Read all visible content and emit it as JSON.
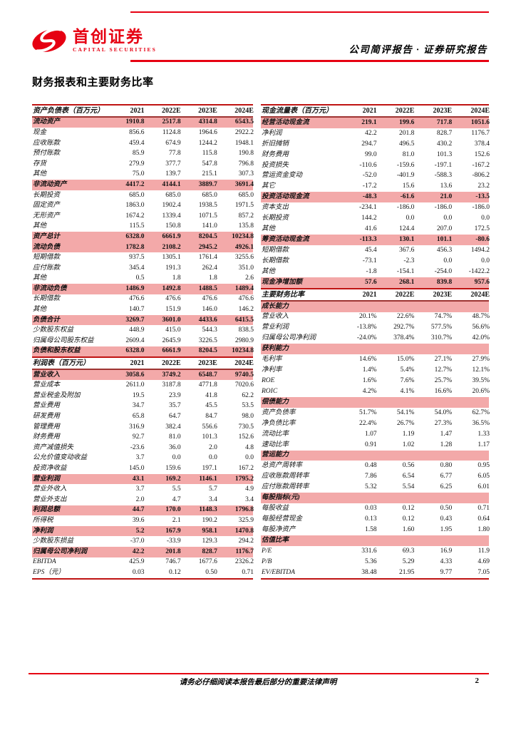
{
  "brand": {
    "name_cn": "首创证券",
    "name_en": "CAPITAL SECURITIES",
    "logo_icon": "red-swoosh-s-icon"
  },
  "header": {
    "title": "公司简评报告 · 证券研究报告"
  },
  "section_title": "财务报表和主要财务比率",
  "footer": {
    "disclaimer": "请务必仔细阅读本报告最后部分的重要法律声明",
    "page_number": "2"
  },
  "colors": {
    "accent_red": "#e60012",
    "table_rule_red": "#bf1312",
    "row_highlight_pink": "#f3a9a9"
  },
  "columns": [
    {
      "tables": [
        {
          "title": "资产负债表（百万元）",
          "years": [
            "2021",
            "2022E",
            "2023E",
            "2024E"
          ],
          "rows": [
            {
              "label": "流动资产",
              "values": [
                "1910.8",
                "2517.8",
                "4314.8",
                "6543.5"
              ],
              "hl": true
            },
            {
              "label": "现金",
              "values": [
                "856.6",
                "1124.8",
                "1964.6",
                "2922.2"
              ]
            },
            {
              "label": "应收账款",
              "values": [
                "459.4",
                "674.9",
                "1244.2",
                "1948.1"
              ]
            },
            {
              "label": "预付账款",
              "values": [
                "85.9",
                "77.8",
                "115.8",
                "190.8"
              ]
            },
            {
              "label": "存货",
              "values": [
                "279.9",
                "377.7",
                "547.8",
                "796.8"
              ]
            },
            {
              "label": "其他",
              "values": [
                "75.0",
                "139.7",
                "215.1",
                "307.3"
              ]
            },
            {
              "label": "非流动资产",
              "values": [
                "4417.2",
                "4144.1",
                "3889.7",
                "3691.4"
              ],
              "hl": true
            },
            {
              "label": "长期投资",
              "values": [
                "685.0",
                "685.0",
                "685.0",
                "685.0"
              ]
            },
            {
              "label": "固定资产",
              "values": [
                "1863.0",
                "1902.4",
                "1938.5",
                "1971.5"
              ]
            },
            {
              "label": "无形资产",
              "values": [
                "1674.2",
                "1339.4",
                "1071.5",
                "857.2"
              ]
            },
            {
              "label": "其他",
              "values": [
                "115.5",
                "150.8",
                "141.0",
                "135.8"
              ]
            },
            {
              "label": "资产总计",
              "values": [
                "6328.0",
                "6661.9",
                "8204.5",
                "10234.8"
              ],
              "hl": true
            },
            {
              "label": "流动负债",
              "values": [
                "1782.8",
                "2108.2",
                "2945.2",
                "4926.1"
              ],
              "hl": true
            },
            {
              "label": "短期借款",
              "values": [
                "937.5",
                "1305.1",
                "1761.4",
                "3255.6"
              ]
            },
            {
              "label": "应付账款",
              "values": [
                "345.4",
                "191.3",
                "262.4",
                "351.0"
              ]
            },
            {
              "label": "其他",
              "values": [
                "0.5",
                "1.8",
                "1.8",
                "2.6"
              ]
            },
            {
              "label": "非流动负债",
              "values": [
                "1486.9",
                "1492.8",
                "1488.5",
                "1489.4"
              ],
              "hl": true
            },
            {
              "label": "长期借款",
              "values": [
                "476.6",
                "476.6",
                "476.6",
                "476.6"
              ]
            },
            {
              "label": "其他",
              "values": [
                "140.7",
                "151.9",
                "146.0",
                "146.2"
              ]
            },
            {
              "label": "负债合计",
              "values": [
                "3269.7",
                "3601.0",
                "4433.6",
                "6415.5"
              ],
              "hl": true
            },
            {
              "label": "少数股东权益",
              "values": [
                "448.9",
                "415.0",
                "544.3",
                "838.5"
              ]
            },
            {
              "label": "归属母公司股东权益",
              "values": [
                "2609.4",
                "2645.9",
                "3226.5",
                "2980.9"
              ]
            },
            {
              "label": "负债和股东权益",
              "values": [
                "6328.0",
                "6661.9",
                "8204.5",
                "10234.8"
              ],
              "hl": true
            }
          ]
        },
        {
          "title": "利润表（百万元）",
          "years": [
            "2021",
            "2022E",
            "2023E",
            "2024E"
          ],
          "rows": [
            {
              "label": "营业收入",
              "values": [
                "3058.6",
                "3749.2",
                "6548.7",
                "9740.5"
              ],
              "hl": true
            },
            {
              "label": "营业成本",
              "values": [
                "2611.0",
                "3187.8",
                "4771.8",
                "7020.6"
              ]
            },
            {
              "label": "营业税金及附加",
              "values": [
                "19.5",
                "23.9",
                "41.8",
                "62.2"
              ]
            },
            {
              "label": "营业费用",
              "values": [
                "34.7",
                "35.7",
                "45.5",
                "53.5"
              ]
            },
            {
              "label": "研发费用",
              "values": [
                "65.8",
                "64.7",
                "84.7",
                "98.0"
              ]
            },
            {
              "label": "管理费用",
              "values": [
                "316.9",
                "382.4",
                "556.6",
                "730.5"
              ]
            },
            {
              "label": "财务费用",
              "values": [
                "92.7",
                "81.0",
                "101.3",
                "152.6"
              ]
            },
            {
              "label": "资产减值损失",
              "values": [
                "-23.6",
                "36.0",
                "2.0",
                "4.8"
              ]
            },
            {
              "label": "公允价值变动收益",
              "values": [
                "3.7",
                "0.0",
                "0.0",
                "0.0"
              ]
            },
            {
              "label": "投资净收益",
              "values": [
                "145.0",
                "159.6",
                "197.1",
                "167.2"
              ]
            },
            {
              "label": "营业利润",
              "values": [
                "43.1",
                "169.2",
                "1146.1",
                "1795.2"
              ],
              "hl": true
            },
            {
              "label": "营业外收入",
              "values": [
                "3.7",
                "5.5",
                "5.7",
                "4.9"
              ]
            },
            {
              "label": "营业外支出",
              "values": [
                "2.0",
                "4.7",
                "3.4",
                "3.4"
              ]
            },
            {
              "label": "利润总额",
              "values": [
                "44.7",
                "170.0",
                "1148.3",
                "1796.8"
              ],
              "hl": true
            },
            {
              "label": "所得税",
              "values": [
                "39.6",
                "2.1",
                "190.2",
                "325.9"
              ]
            },
            {
              "label": "净利润",
              "values": [
                "5.2",
                "167.9",
                "958.1",
                "1470.8"
              ],
              "hl": true
            },
            {
              "label": "少数股东损益",
              "values": [
                "-37.0",
                "-33.9",
                "129.3",
                "294.2"
              ]
            },
            {
              "label": "归属母公司净利润",
              "values": [
                "42.2",
                "201.8",
                "828.7",
                "1176.7"
              ],
              "hl": true
            },
            {
              "label": "EBITDA",
              "values": [
                "425.9",
                "746.7",
                "1677.6",
                "2326.2"
              ]
            },
            {
              "label": "EPS（元）",
              "values": [
                "0.03",
                "0.12",
                "0.50",
                "0.71"
              ]
            }
          ]
        }
      ]
    },
    {
      "tables": [
        {
          "title": "现金流量表（百万元）",
          "years": [
            "2021",
            "2022E",
            "2023E",
            "2024E"
          ],
          "rows": [
            {
              "label": "经营活动现金流",
              "values": [
                "219.1",
                "199.6",
                "717.8",
                "1051.6"
              ],
              "hl": true
            },
            {
              "label": "净利润",
              "values": [
                "42.2",
                "201.8",
                "828.7",
                "1176.7"
              ]
            },
            {
              "label": "折旧摊销",
              "values": [
                "294.7",
                "496.5",
                "430.2",
                "378.4"
              ]
            },
            {
              "label": "财务费用",
              "values": [
                "99.0",
                "81.0",
                "101.3",
                "152.6"
              ]
            },
            {
              "label": "投资损失",
              "values": [
                "-110.6",
                "-159.6",
                "-197.1",
                "-167.2"
              ]
            },
            {
              "label": "营运资金变动",
              "values": [
                "-52.0",
                "-401.9",
                "-588.3",
                "-806.2"
              ]
            },
            {
              "label": "其它",
              "values": [
                "-17.2",
                "15.6",
                "13.6",
                "23.2"
              ]
            },
            {
              "label": "投资活动现金流",
              "values": [
                "-48.3",
                "-61.6",
                "21.0",
                "-13.5"
              ],
              "hl": true
            },
            {
              "label": "资本支出",
              "values": [
                "-234.1",
                "-186.0",
                "-186.0",
                "-186.0"
              ]
            },
            {
              "label": "长期投资",
              "values": [
                "144.2",
                "0.0",
                "0.0",
                "0.0"
              ]
            },
            {
              "label": "其他",
              "values": [
                "41.6",
                "124.4",
                "207.0",
                "172.5"
              ]
            },
            {
              "label": "筹资活动现金流",
              "values": [
                "-113.3",
                "130.1",
                "101.1",
                "-80.6"
              ],
              "hl": true
            },
            {
              "label": "短期借款",
              "values": [
                "45.4",
                "367.6",
                "456.3",
                "1494.2"
              ]
            },
            {
              "label": "长期借款",
              "values": [
                "-73.1",
                "-2.3",
                "0.0",
                "0.0"
              ]
            },
            {
              "label": "其他",
              "values": [
                "-1.8",
                "-154.1",
                "-254.0",
                "-1422.2"
              ]
            },
            {
              "label": "现金净增加额",
              "values": [
                "57.6",
                "268.1",
                "839.8",
                "957.6"
              ],
              "hl": true
            }
          ]
        },
        {
          "title": "主要财务比率",
          "years": [
            "2021",
            "2022E",
            "2023E",
            "2024E"
          ],
          "rows": [
            {
              "label": "成长能力",
              "type": "section"
            },
            {
              "label": "营业收入",
              "values": [
                "20.1%",
                "22.6%",
                "74.7%",
                "48.7%"
              ]
            },
            {
              "label": "营业利润",
              "values": [
                "-13.8%",
                "292.7%",
                "577.5%",
                "56.6%"
              ]
            },
            {
              "label": "归属母公司净利润",
              "values": [
                "-24.0%",
                "378.4%",
                "310.7%",
                "42.0%"
              ]
            },
            {
              "label": "获利能力",
              "type": "section"
            },
            {
              "label": "毛利率",
              "values": [
                "14.6%",
                "15.0%",
                "27.1%",
                "27.9%"
              ]
            },
            {
              "label": "净利率",
              "values": [
                "1.4%",
                "5.4%",
                "12.7%",
                "12.1%"
              ]
            },
            {
              "label": "ROE",
              "values": [
                "1.6%",
                "7.6%",
                "25.7%",
                "39.5%"
              ]
            },
            {
              "label": "ROIC",
              "values": [
                "4.2%",
                "4.1%",
                "16.6%",
                "20.6%"
              ]
            },
            {
              "label": "偿债能力",
              "type": "section"
            },
            {
              "label": "资产负债率",
              "values": [
                "51.7%",
                "54.1%",
                "54.0%",
                "62.7%"
              ]
            },
            {
              "label": "净负债比率",
              "values": [
                "22.4%",
                "26.7%",
                "27.3%",
                "36.5%"
              ]
            },
            {
              "label": "流动比率",
              "values": [
                "1.07",
                "1.19",
                "1.47",
                "1.33"
              ]
            },
            {
              "label": "速动比率",
              "values": [
                "0.91",
                "1.02",
                "1.28",
                "1.17"
              ]
            },
            {
              "label": "营运能力",
              "type": "section"
            },
            {
              "label": "总资产周转率",
              "values": [
                "0.48",
                "0.56",
                "0.80",
                "0.95"
              ]
            },
            {
              "label": "应收账款周转率",
              "values": [
                "7.86",
                "6.54",
                "6.77",
                "6.05"
              ]
            },
            {
              "label": "应付账款周转率",
              "values": [
                "5.32",
                "5.54",
                "6.25",
                "6.01"
              ]
            },
            {
              "label": "每股指标(元)",
              "type": "section"
            },
            {
              "label": "每股收益",
              "values": [
                "0.03",
                "0.12",
                "0.50",
                "0.71"
              ]
            },
            {
              "label": "每股经营现金",
              "values": [
                "0.13",
                "0.12",
                "0.43",
                "0.64"
              ]
            },
            {
              "label": "每股净资产",
              "values": [
                "1.58",
                "1.60",
                "1.95",
                "1.80"
              ]
            },
            {
              "label": "估值比率",
              "type": "section"
            },
            {
              "label": "P/E",
              "values": [
                "331.6",
                "69.3",
                "16.9",
                "11.9"
              ]
            },
            {
              "label": "P/B",
              "values": [
                "5.36",
                "5.29",
                "4.33",
                "4.69"
              ]
            },
            {
              "label": "EV/EBITDA",
              "values": [
                "38.48",
                "21.95",
                "9.77",
                "7.05"
              ]
            }
          ]
        }
      ]
    }
  ]
}
